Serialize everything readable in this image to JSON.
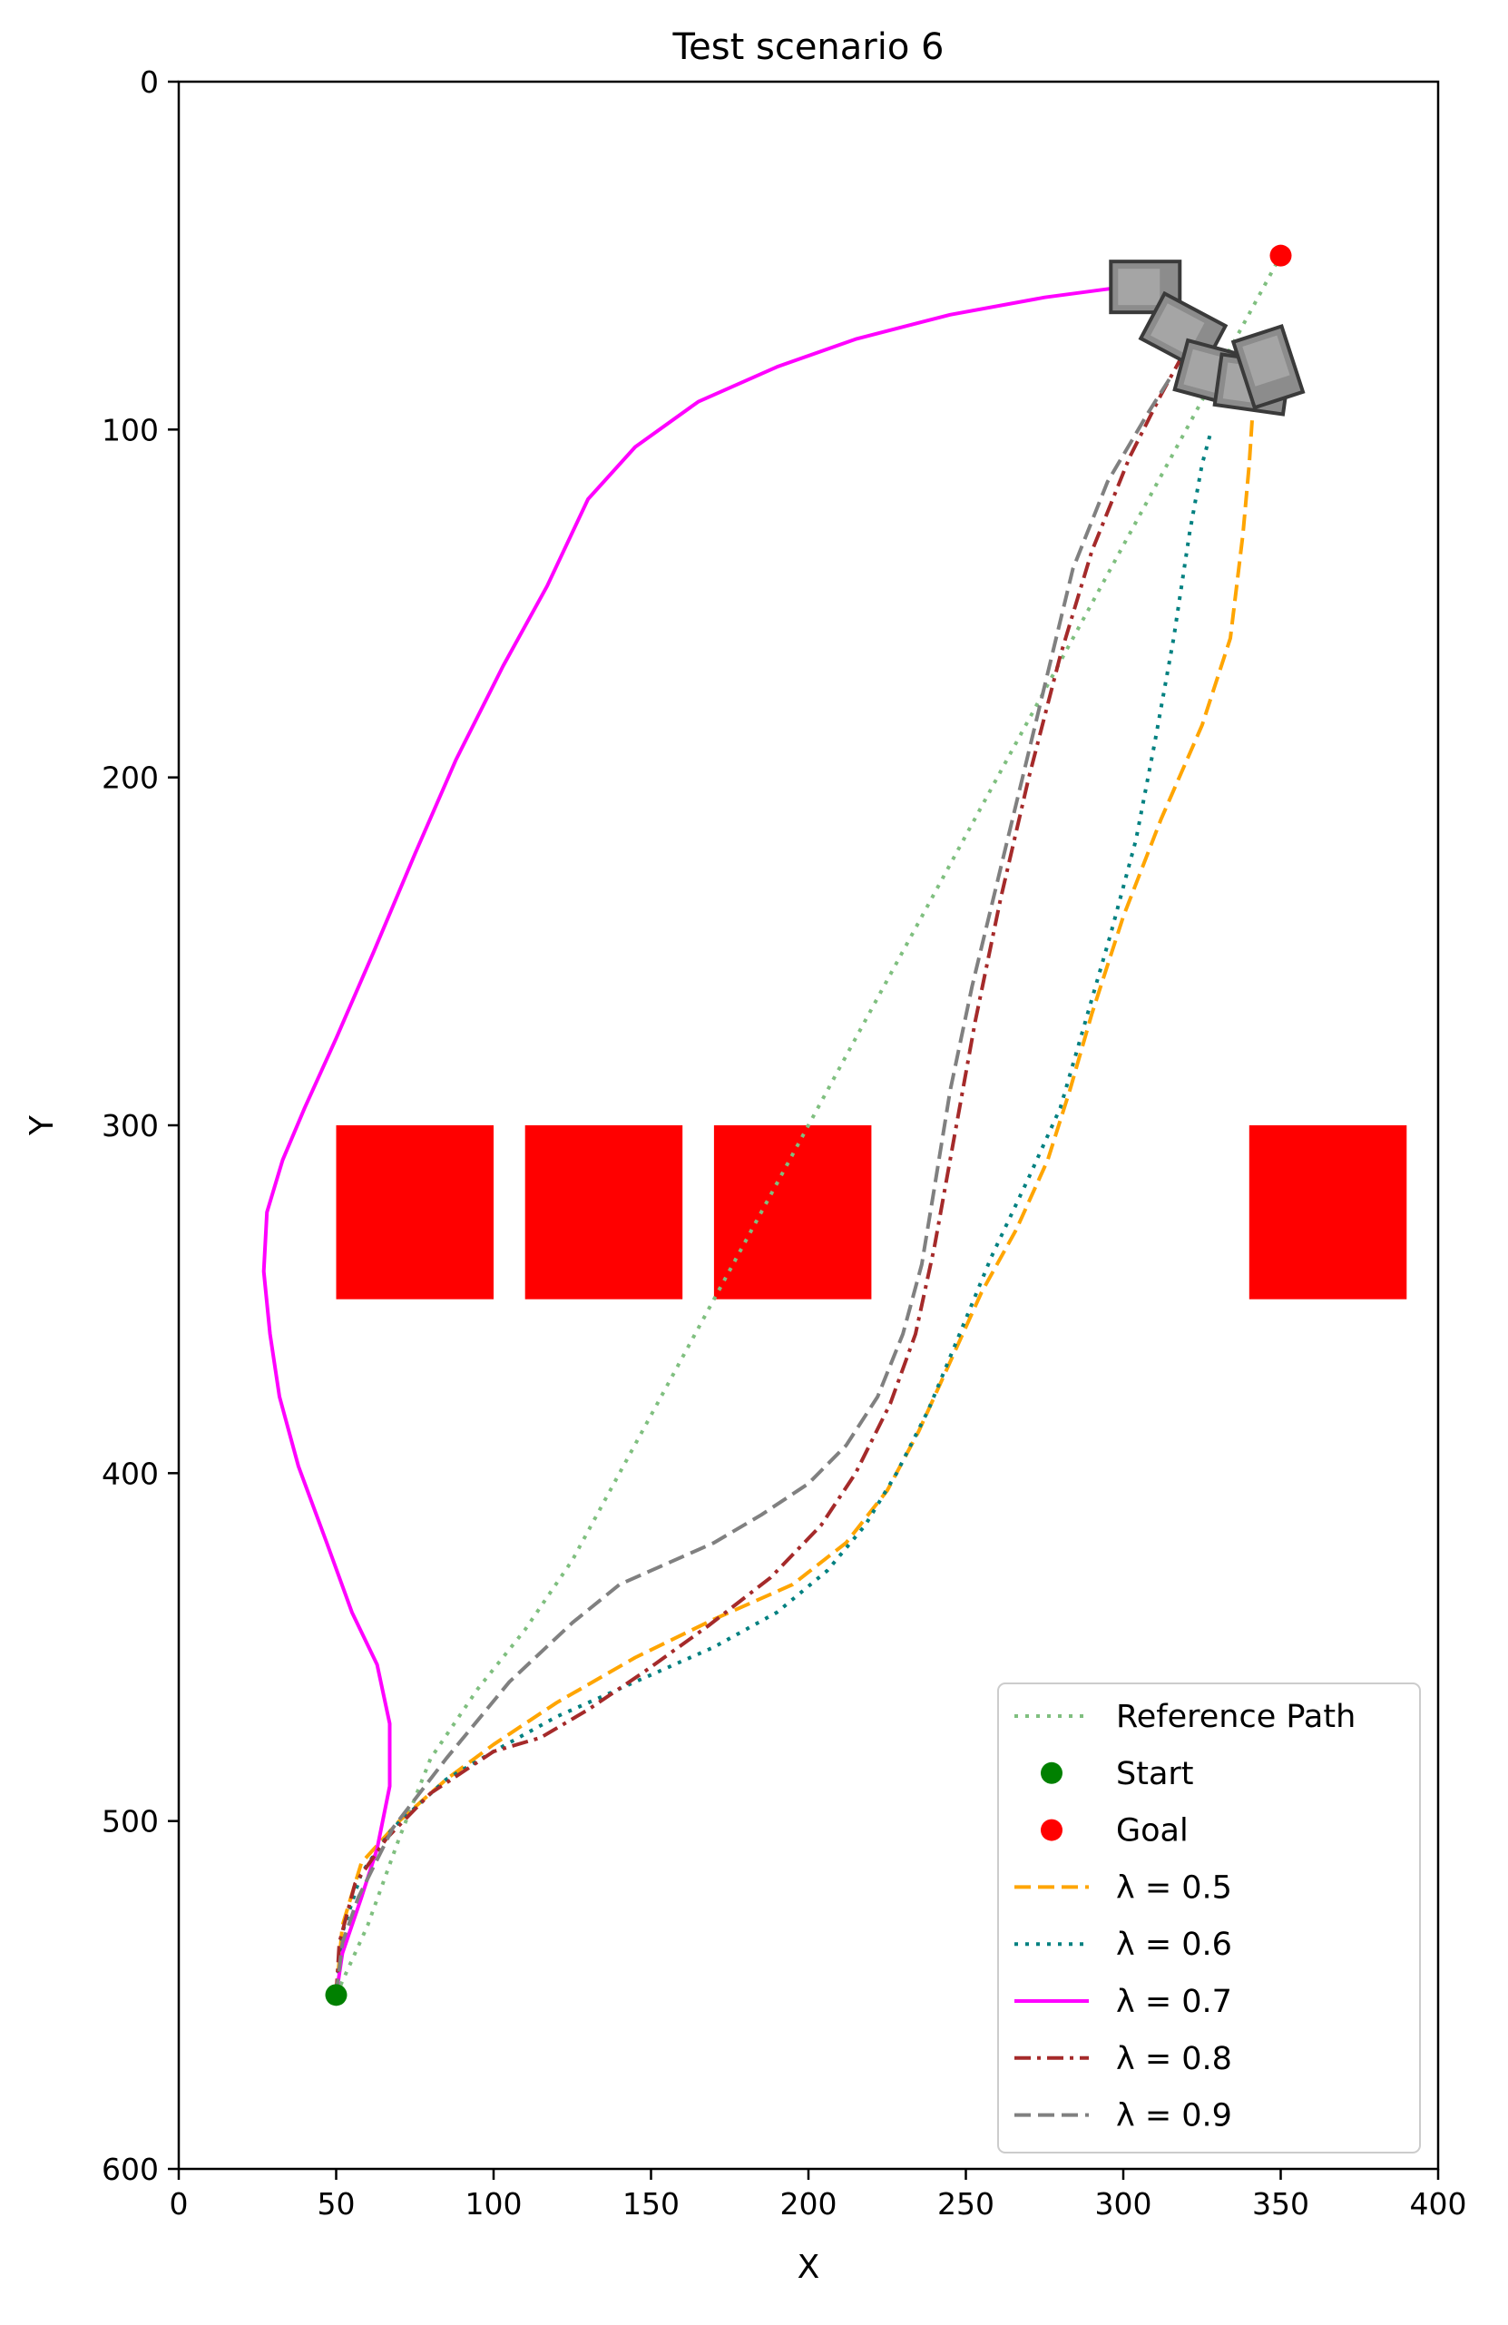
{
  "chart_data": {
    "type": "line",
    "title": "Test scenario 6",
    "xlabel": "X",
    "ylabel": "Y",
    "xlim": [
      0,
      400
    ],
    "ylim": [
      600,
      0
    ],
    "y_inverted": true,
    "grid": false,
    "legend_position": "lower right",
    "xticks": [
      "0",
      "50",
      "100",
      "150",
      "200",
      "250",
      "300",
      "350",
      "400"
    ],
    "yticks": [
      "0",
      "100",
      "200",
      "300",
      "400",
      "500",
      "600"
    ],
    "obstacles": [
      {
        "x": [
          50,
          100
        ],
        "y": [
          300,
          350
        ],
        "color": "#ff0000"
      },
      {
        "x": [
          110,
          160
        ],
        "y": [
          300,
          350
        ],
        "color": "#ff0000"
      },
      {
        "x": [
          170,
          220
        ],
        "y": [
          300,
          350
        ],
        "color": "#ff0000"
      },
      {
        "x": [
          340,
          390
        ],
        "y": [
          300,
          350
        ],
        "color": "#ff0000"
      }
    ],
    "start": {
      "name": "Start",
      "x": 50,
      "y": 550,
      "color": "#008000"
    },
    "goal": {
      "name": "Goal",
      "x": 350,
      "y": 50,
      "color": "#ff0000"
    },
    "series": [
      {
        "name": "Reference Path",
        "color": "#7fbf7f",
        "dash": "dotted",
        "points": [
          [
            50,
            550
          ],
          [
            60,
            530
          ],
          [
            70,
            505
          ],
          [
            80,
            482
          ],
          [
            95,
            462
          ],
          [
            110,
            445
          ],
          [
            125,
            425
          ],
          [
            140,
            400
          ],
          [
            155,
            375
          ],
          [
            170,
            350
          ],
          [
            185,
            325
          ],
          [
            200,
            300
          ],
          [
            215,
            275
          ],
          [
            230,
            250
          ],
          [
            245,
            225
          ],
          [
            260,
            200
          ],
          [
            275,
            175
          ],
          [
            290,
            150
          ],
          [
            305,
            125
          ],
          [
            320,
            100
          ],
          [
            335,
            75
          ],
          [
            350,
            50
          ]
        ]
      },
      {
        "name": "λ = 0.5",
        "color": "#ffa500",
        "dash": "dashed",
        "points": [
          [
            50,
            550
          ],
          [
            52,
            530
          ],
          [
            58,
            512
          ],
          [
            70,
            500
          ],
          [
            85,
            488
          ],
          [
            100,
            478
          ],
          [
            120,
            466
          ],
          [
            145,
            453
          ],
          [
            170,
            442
          ],
          [
            195,
            432
          ],
          [
            212,
            420
          ],
          [
            225,
            405
          ],
          [
            235,
            388
          ],
          [
            245,
            368
          ],
          [
            255,
            348
          ],
          [
            266,
            330
          ],
          [
            276,
            310
          ],
          [
            283,
            290
          ],
          [
            290,
            268
          ],
          [
            300,
            240
          ],
          [
            312,
            212
          ],
          [
            325,
            185
          ],
          [
            334,
            160
          ],
          [
            338,
            130
          ],
          [
            340,
            110
          ],
          [
            341,
            96
          ]
        ]
      },
      {
        "name": "λ = 0.6",
        "color": "#008080",
        "dash": "dotted",
        "points": [
          [
            50,
            550
          ],
          [
            52,
            532
          ],
          [
            58,
            515
          ],
          [
            68,
            502
          ],
          [
            85,
            488
          ],
          [
            100,
            480
          ],
          [
            120,
            470
          ],
          [
            145,
            460
          ],
          [
            170,
            450
          ],
          [
            190,
            440
          ],
          [
            206,
            428
          ],
          [
            218,
            415
          ],
          [
            228,
            400
          ],
          [
            238,
            382
          ],
          [
            248,
            360
          ],
          [
            258,
            338
          ],
          [
            270,
            315
          ],
          [
            280,
            295
          ],
          [
            288,
            270
          ],
          [
            296,
            245
          ],
          [
            304,
            218
          ],
          [
            310,
            190
          ],
          [
            316,
            160
          ],
          [
            321,
            130
          ],
          [
            325,
            110
          ],
          [
            328,
            100
          ]
        ]
      },
      {
        "name": "λ = 0.7",
        "color": "#ff00ff",
        "dash": "solid",
        "points": [
          [
            50,
            550
          ],
          [
            52,
            538
          ],
          [
            58,
            522
          ],
          [
            63,
            508
          ],
          [
            67,
            490
          ],
          [
            67,
            472
          ],
          [
            63,
            455
          ],
          [
            55,
            440
          ],
          [
            47,
            420
          ],
          [
            38,
            398
          ],
          [
            32,
            378
          ],
          [
            29,
            360
          ],
          [
            27,
            342
          ],
          [
            28,
            325
          ],
          [
            33,
            310
          ],
          [
            40,
            295
          ],
          [
            50,
            275
          ],
          [
            62,
            250
          ],
          [
            75,
            222
          ],
          [
            88,
            195
          ],
          [
            103,
            168
          ],
          [
            117,
            145
          ],
          [
            130,
            120
          ],
          [
            145,
            105
          ],
          [
            165,
            92
          ],
          [
            190,
            82
          ],
          [
            215,
            74
          ],
          [
            245,
            67
          ],
          [
            275,
            62
          ],
          [
            300,
            59
          ]
        ]
      },
      {
        "name": "λ = 0.8",
        "color": "#a52a2a",
        "dash": "dashdot",
        "points": [
          [
            50,
            550
          ],
          [
            51,
            535
          ],
          [
            56,
            518
          ],
          [
            66,
            505
          ],
          [
            80,
            492
          ],
          [
            100,
            480
          ],
          [
            115,
            476
          ],
          [
            130,
            468
          ],
          [
            148,
            457
          ],
          [
            168,
            444
          ],
          [
            188,
            430
          ],
          [
            204,
            415
          ],
          [
            215,
            400
          ],
          [
            226,
            380
          ],
          [
            234,
            360
          ],
          [
            240,
            335
          ],
          [
            246,
            305
          ],
          [
            253,
            270
          ],
          [
            261,
            235
          ],
          [
            270,
            200
          ],
          [
            280,
            165
          ],
          [
            290,
            135
          ],
          [
            302,
            108
          ],
          [
            312,
            90
          ],
          [
            318,
            80
          ]
        ]
      },
      {
        "name": "λ = 0.9",
        "color": "#808080",
        "dash": "dashed",
        "points": [
          [
            50,
            550
          ],
          [
            52,
            535
          ],
          [
            57,
            522
          ],
          [
            68,
            502
          ],
          [
            85,
            482
          ],
          [
            105,
            460
          ],
          [
            125,
            443
          ],
          [
            140,
            432
          ],
          [
            155,
            426
          ],
          [
            170,
            420
          ],
          [
            185,
            412
          ],
          [
            200,
            403
          ],
          [
            212,
            392
          ],
          [
            222,
            378
          ],
          [
            230,
            360
          ],
          [
            236,
            340
          ],
          [
            240,
            318
          ],
          [
            245,
            290
          ],
          [
            252,
            260
          ],
          [
            260,
            230
          ],
          [
            268,
            200
          ],
          [
            276,
            170
          ],
          [
            284,
            140
          ],
          [
            295,
            115
          ],
          [
            308,
            95
          ],
          [
            315,
            85
          ]
        ]
      }
    ],
    "vehicle_poses": [
      {
        "x": 307,
        "y": 59,
        "angle": 0
      },
      {
        "x": 319,
        "y": 72,
        "angle": 28
      },
      {
        "x": 329,
        "y": 84,
        "angle": 15
      },
      {
        "x": 341,
        "y": 87,
        "angle": 8
      },
      {
        "x": 346,
        "y": 82,
        "angle": 72
      }
    ]
  }
}
